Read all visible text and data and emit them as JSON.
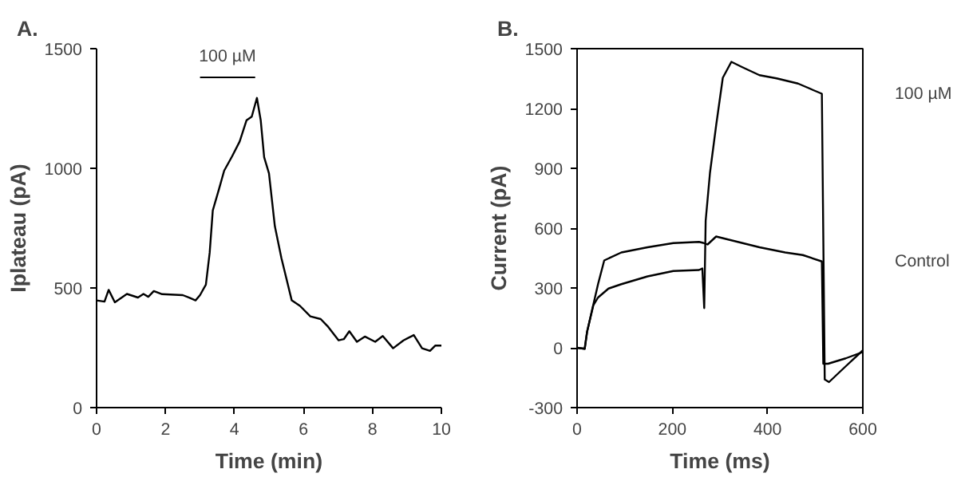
{
  "chart_data": [
    {
      "type": "line",
      "title": "A.",
      "xlabel": "Time (min)",
      "ylabel": "Iplateau (pA)",
      "x": [
        0,
        0.23,
        0.35,
        0.53,
        0.88,
        1.2,
        1.36,
        1.5,
        1.66,
        1.9,
        2.5,
        2.7,
        2.87,
        3.0,
        3.17,
        3.28,
        3.37,
        3.55,
        3.7,
        3.93,
        4.15,
        4.35,
        4.5,
        4.65,
        4.76,
        4.86,
        5.0,
        5.17,
        5.36,
        5.66,
        5.9,
        6.2,
        6.5,
        6.72,
        7.02,
        7.17,
        7.33,
        7.55,
        7.78,
        8.08,
        8.3,
        8.6,
        8.9,
        9.2,
        9.44,
        9.67,
        9.82,
        10
      ],
      "series": [
        {
          "color": "#000000",
          "values": [
            448,
            443,
            492,
            440,
            475,
            460,
            475,
            463,
            487,
            474,
            470,
            459,
            448,
            470,
            514,
            647,
            824,
            913,
            990,
            1050,
            1112,
            1201,
            1216,
            1294,
            1201,
            1046,
            979,
            758,
            625,
            448,
            425,
            381,
            370,
            337,
            281,
            286,
            319,
            275,
            297,
            275,
            299,
            248,
            281,
            303,
            248,
            237,
            259,
            259
          ]
        }
      ],
      "annotations": [
        "100 µM"
      ],
      "xlim": [
        0,
        10
      ],
      "xticks": [
        0,
        2,
        4,
        6,
        8,
        10
      ],
      "ylim": [
        0,
        1500
      ],
      "yticks": [
        0,
        500,
        1000,
        1500
      ],
      "grid": false,
      "legend": false
    },
    {
      "type": "line",
      "title": "B.",
      "xlabel": "Time (ms)",
      "ylabel": "Current (pA)",
      "series": [
        {
          "name": "100 µM",
          "color": "#000000",
          "x": [
            0,
            16,
            21,
            34,
            44,
            66,
            93,
            148,
            202,
            256,
            263,
            267,
            270,
            279,
            292,
            306,
            324,
            347,
            383,
            419,
            464,
            500,
            514,
            520,
            529,
            564,
            600
          ],
          "values": [
            0,
            -5,
            80,
            212,
            252,
            297,
            319,
            358,
            385,
            390,
            398,
            199,
            637,
            876,
            1115,
            1354,
            1434,
            1407,
            1367,
            1351,
            1325,
            1288,
            1274,
            -159,
            -172,
            -93,
            -13
          ]
        },
        {
          "name": "Control",
          "color": "#000000",
          "x": [
            0,
            16,
            21,
            44,
            57,
            93,
            148,
            202,
            256,
            265,
            274,
            292,
            329,
            383,
            437,
            474,
            514,
            517,
            527,
            564,
            600
          ],
          "values": [
            0,
            -5,
            80,
            319,
            438,
            478,
            504,
            525,
            531,
            526,
            518,
            558,
            536,
            504,
            478,
            465,
            433,
            -80,
            -80,
            -53,
            -21
          ]
        }
      ],
      "xlim": [
        0,
        600
      ],
      "xticks": [
        0,
        200,
        400,
        600
      ],
      "ylim": [
        -300,
        1500
      ],
      "yticks": [
        -300,
        0,
        300,
        600,
        900,
        1200,
        1500
      ],
      "grid": false,
      "legend": false
    }
  ]
}
